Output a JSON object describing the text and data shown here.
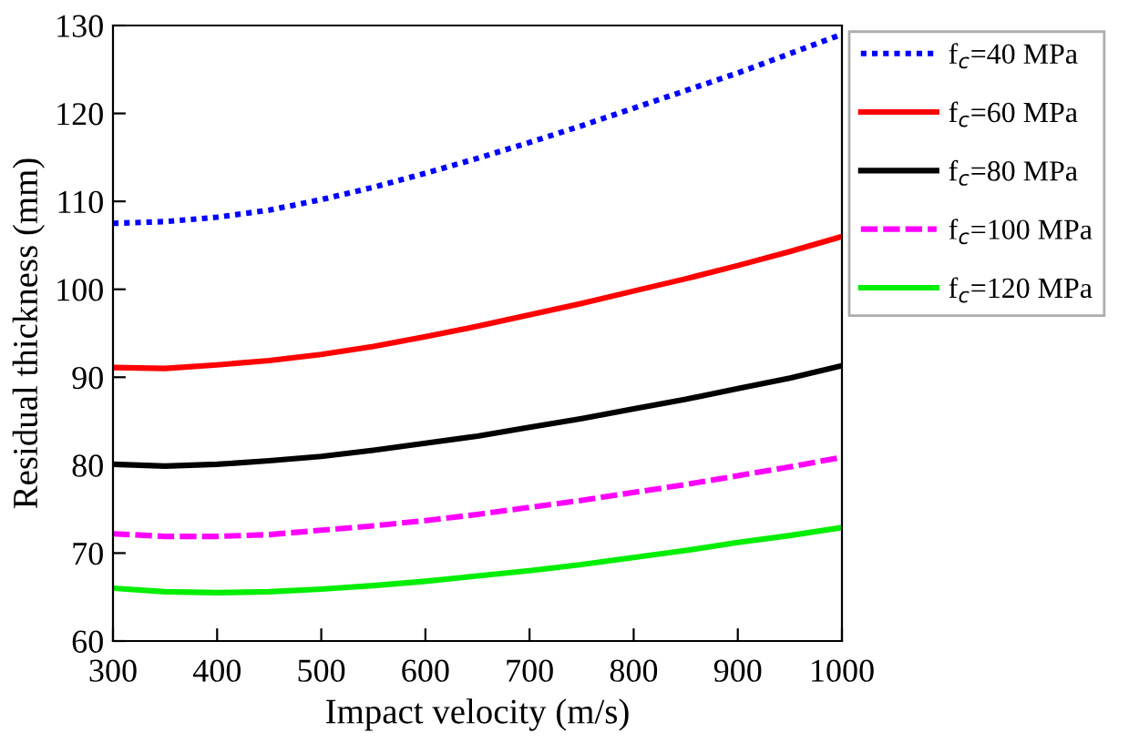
{
  "chart_data": {
    "type": "line",
    "xlabel": "Impact velocity (m/s)",
    "ylabel": "Residual thickness (mm)",
    "x": [
      300,
      350,
      400,
      450,
      500,
      550,
      600,
      650,
      700,
      750,
      800,
      850,
      900,
      950,
      1000
    ],
    "xlim": [
      300,
      1000
    ],
    "xticks": [
      300,
      400,
      500,
      600,
      700,
      800,
      900,
      1000
    ],
    "ylim": [
      60,
      130
    ],
    "yticks": [
      60,
      70,
      80,
      90,
      100,
      110,
      120,
      130
    ],
    "grid": false,
    "legend": "top right",
    "marker": "none",
    "series": [
      {
        "name": "f$_{c}$=40 MPa",
        "color": "#0000ff",
        "line_style": "dotted",
        "values": [
          107.5,
          107.7,
          108.2,
          109.0,
          110.2,
          111.6,
          113.2,
          114.9,
          116.7,
          118.6,
          120.6,
          122.6,
          124.6,
          126.8,
          129
        ]
      },
      {
        "name": "f$_{c}$=60 MPa",
        "color": "#ff0000",
        "line_style": "solid",
        "values": [
          91.1,
          91.0,
          91.4,
          91.9,
          92.6,
          93.5,
          94.6,
          95.8,
          97.1,
          98.4,
          99.8,
          101.2,
          102.7,
          104.3,
          106
        ]
      },
      {
        "name": "f$_{c}$=80 MPa",
        "color": "#000000",
        "line_style": "solid",
        "values": [
          80.1,
          79.9,
          80.1,
          80.5,
          81.0,
          81.7,
          82.5,
          83.3,
          84.3,
          85.3,
          86.4,
          87.5,
          88.7,
          89.9,
          91.3
        ]
      },
      {
        "name": "f$_{c}$=100 MPa",
        "color": "#ff00ff",
        "line_style": "dashed",
        "values": [
          72.2,
          71.9,
          71.9,
          72.1,
          72.6,
          73.1,
          73.7,
          74.4,
          75.2,
          76.0,
          76.9,
          77.8,
          78.8,
          79.8,
          80.9
        ]
      },
      {
        "name": "f$_{c}$=120 MPa",
        "color": "#00ee00",
        "line_style": "solid",
        "values": [
          66.0,
          65.6,
          65.5,
          65.6,
          65.9,
          66.3,
          66.8,
          67.4,
          68.0,
          68.7,
          69.5,
          70.3,
          71.2,
          72.0,
          72.9
        ]
      }
    ]
  }
}
